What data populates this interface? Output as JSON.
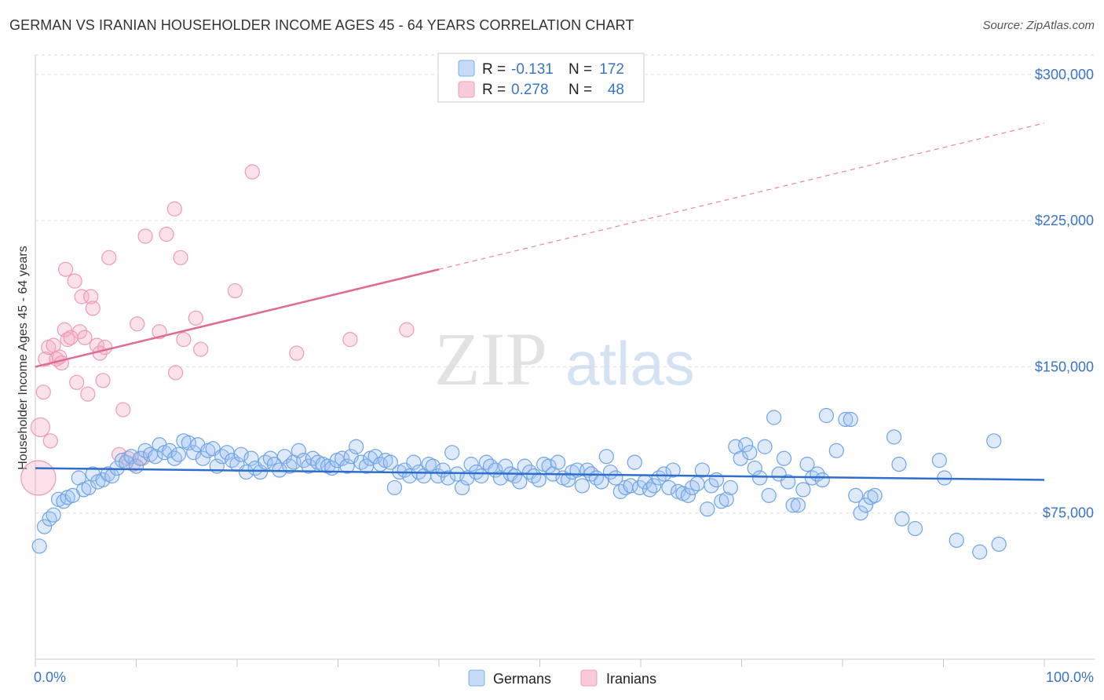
{
  "header": {
    "title": "GERMAN VS IRANIAN HOUSEHOLDER INCOME AGES 45 - 64 YEARS CORRELATION CHART",
    "source": "Source: ZipAtlas.com"
  },
  "watermark": {
    "zip": "ZIP",
    "atlas": "atlas"
  },
  "legend": {
    "r_label": "R =",
    "n_label": "N =",
    "rows": [
      {
        "r": "-0.131",
        "n": "172"
      },
      {
        "r": "0.278",
        "n": "48"
      }
    ]
  },
  "chart_data": {
    "type": "scatter",
    "title": "GERMAN VS IRANIAN HOUSEHOLDER INCOME AGES 45 - 64 YEARS CORRELATION CHART",
    "ylabel": "Householder Income Ages 45 - 64 years",
    "xlabel": "",
    "xlim": [
      0,
      100
    ],
    "ylim": [
      0,
      310000
    ],
    "x_tick_labels": [
      "0.0%",
      "100.0%"
    ],
    "y_ticks": [
      75000,
      150000,
      225000,
      300000
    ],
    "y_tick_labels": [
      "$75,000",
      "$150,000",
      "$225,000",
      "$300,000"
    ],
    "grid": "horizontal dashed",
    "legend_position": "top-center",
    "colors": {
      "germans": "#6fa4e6",
      "iranians": "#f0a0bb",
      "german_line": "#2f6fcb",
      "iranian_line": "#e06a90"
    },
    "series": [
      {
        "name": "Germans",
        "trend": {
          "x": [
            0,
            100
          ],
          "y": [
            98000,
            92000
          ]
        },
        "points": [
          [
            0.4,
            58000
          ],
          [
            0.9,
            68000
          ],
          [
            1.4,
            72000
          ],
          [
            1.8,
            74000
          ],
          [
            2.3,
            82000
          ],
          [
            2.8,
            81000
          ],
          [
            3.2,
            83000
          ],
          [
            3.7,
            84000
          ],
          [
            4.3,
            93000
          ],
          [
            4.8,
            87000
          ],
          [
            5.3,
            88000
          ],
          [
            5.7,
            95000
          ],
          [
            6.2,
            91000
          ],
          [
            6.7,
            92000
          ],
          [
            7.2,
            95000
          ],
          [
            7.6,
            94000
          ],
          [
            8.1,
            98000
          ],
          [
            8.6,
            102000
          ],
          [
            9.0,
            101000
          ],
          [
            9.5,
            104000
          ],
          [
            10.0,
            99000
          ],
          [
            10.4,
            103000
          ],
          [
            10.9,
            107000
          ],
          [
            11.4,
            105000
          ],
          [
            11.9,
            104000
          ],
          [
            12.3,
            110000
          ],
          [
            12.8,
            106000
          ],
          [
            13.3,
            107000
          ],
          [
            13.8,
            103000
          ],
          [
            14.2,
            105000
          ],
          [
            14.7,
            112000
          ],
          [
            15.2,
            111000
          ],
          [
            15.7,
            106000
          ],
          [
            16.1,
            110000
          ],
          [
            16.6,
            103000
          ],
          [
            17.1,
            107000
          ],
          [
            17.6,
            108000
          ],
          [
            18.0,
            99000
          ],
          [
            18.5,
            104000
          ],
          [
            19.0,
            106000
          ],
          [
            19.5,
            102000
          ],
          [
            20.0,
            100000
          ],
          [
            20.4,
            105000
          ],
          [
            20.9,
            96000
          ],
          [
            21.4,
            103000
          ],
          [
            21.8,
            98000
          ],
          [
            22.3,
            96000
          ],
          [
            22.8,
            101000
          ],
          [
            23.3,
            103000
          ],
          [
            23.7,
            100000
          ],
          [
            24.2,
            97000
          ],
          [
            24.7,
            104000
          ],
          [
            25.2,
            99000
          ],
          [
            25.6,
            101000
          ],
          [
            26.1,
            107000
          ],
          [
            26.6,
            102000
          ],
          [
            27.1,
            99000
          ],
          [
            27.5,
            103000
          ],
          [
            28.0,
            101000
          ],
          [
            28.5,
            100000
          ],
          [
            29.0,
            99000
          ],
          [
            29.4,
            98000
          ],
          [
            29.9,
            102000
          ],
          [
            30.4,
            103000
          ],
          [
            30.9,
            99000
          ],
          [
            31.3,
            104000
          ],
          [
            31.8,
            109000
          ],
          [
            32.3,
            101000
          ],
          [
            32.8,
            99000
          ],
          [
            33.2,
            103000
          ],
          [
            33.7,
            104000
          ],
          [
            34.2,
            100000
          ],
          [
            34.7,
            102000
          ],
          [
            35.2,
            101000
          ],
          [
            35.6,
            88000
          ],
          [
            36.1,
            96000
          ],
          [
            36.6,
            97000
          ],
          [
            37.1,
            94000
          ],
          [
            37.5,
            101000
          ],
          [
            38.0,
            96000
          ],
          [
            38.5,
            94000
          ],
          [
            39.0,
            100000
          ],
          [
            39.4,
            99000
          ],
          [
            39.9,
            94000
          ],
          [
            40.4,
            97000
          ],
          [
            40.9,
            93000
          ],
          [
            41.3,
            106000
          ],
          [
            41.8,
            95000
          ],
          [
            42.3,
            88000
          ],
          [
            42.8,
            93000
          ],
          [
            43.2,
            100000
          ],
          [
            43.7,
            96000
          ],
          [
            44.2,
            94000
          ],
          [
            44.7,
            101000
          ],
          [
            45.1,
            99000
          ],
          [
            45.6,
            97000
          ],
          [
            46.1,
            93000
          ],
          [
            46.6,
            99000
          ],
          [
            47.1,
            95000
          ],
          [
            47.5,
            94000
          ],
          [
            48.0,
            91000
          ],
          [
            48.5,
            99000
          ],
          [
            49.0,
            96000
          ],
          [
            49.4,
            94000
          ],
          [
            49.9,
            92000
          ],
          [
            50.4,
            100000
          ],
          [
            50.9,
            99000
          ],
          [
            51.3,
            95000
          ],
          [
            51.8,
            101000
          ],
          [
            52.3,
            93000
          ],
          [
            52.8,
            92000
          ],
          [
            53.2,
            96000
          ],
          [
            53.7,
            97000
          ],
          [
            54.2,
            89000
          ],
          [
            54.7,
            97000
          ],
          [
            55.1,
            95000
          ],
          [
            55.6,
            93000
          ],
          [
            56.1,
            91000
          ],
          [
            56.6,
            104000
          ],
          [
            57.0,
            96000
          ],
          [
            57.5,
            93000
          ],
          [
            58.0,
            86000
          ],
          [
            58.5,
            88000
          ],
          [
            59.0,
            89000
          ],
          [
            59.4,
            101000
          ],
          [
            59.9,
            88000
          ],
          [
            60.4,
            91000
          ],
          [
            60.9,
            87000
          ],
          [
            61.3,
            89000
          ],
          [
            61.8,
            93000
          ],
          [
            62.3,
            95000
          ],
          [
            62.8,
            88000
          ],
          [
            63.2,
            97000
          ],
          [
            63.7,
            86000
          ],
          [
            64.2,
            85000
          ],
          [
            64.7,
            84000
          ],
          [
            65.1,
            88000
          ],
          [
            65.6,
            90000
          ],
          [
            66.1,
            97000
          ],
          [
            66.6,
            77000
          ],
          [
            67.0,
            89000
          ],
          [
            67.5,
            92000
          ],
          [
            68.0,
            81000
          ],
          [
            68.5,
            82000
          ],
          [
            68.9,
            88000
          ],
          [
            69.4,
            109000
          ],
          [
            69.9,
            103000
          ],
          [
            70.4,
            110000
          ],
          [
            70.8,
            106000
          ],
          [
            71.3,
            98000
          ],
          [
            71.8,
            93000
          ],
          [
            72.3,
            109000
          ],
          [
            72.7,
            84000
          ],
          [
            73.2,
            124000
          ],
          [
            73.7,
            95000
          ],
          [
            74.2,
            103000
          ],
          [
            74.6,
            91000
          ],
          [
            75.1,
            79000
          ],
          [
            75.6,
            79000
          ],
          [
            76.1,
            87000
          ],
          [
            76.5,
            100000
          ],
          [
            77.0,
            93000
          ],
          [
            77.5,
            95000
          ],
          [
            78.0,
            92000
          ],
          [
            78.4,
            125000
          ],
          [
            79.4,
            107000
          ],
          [
            80.3,
            123000
          ],
          [
            80.8,
            123000
          ],
          [
            81.3,
            84000
          ],
          [
            81.8,
            75000
          ],
          [
            82.3,
            79000
          ],
          [
            82.8,
            83000
          ],
          [
            83.2,
            84000
          ],
          [
            85.1,
            114000
          ],
          [
            85.6,
            100000
          ],
          [
            85.9,
            72000
          ],
          [
            87.2,
            67000
          ],
          [
            89.6,
            102000
          ],
          [
            90.1,
            93000
          ],
          [
            91.3,
            61000
          ],
          [
            93.6,
            55000
          ],
          [
            95.0,
            112000
          ],
          [
            95.5,
            59000
          ]
        ]
      },
      {
        "name": "Iranians",
        "trend": {
          "x": [
            0,
            100
          ],
          "y": [
            150000,
            275000
          ]
        },
        "points": [
          [
            0.3,
            93000
          ],
          [
            0.5,
            119000
          ],
          [
            0.8,
            137000
          ],
          [
            1.0,
            154000
          ],
          [
            1.3,
            160000
          ],
          [
            1.5,
            112000
          ],
          [
            1.8,
            161000
          ],
          [
            2.1,
            154000
          ],
          [
            2.4,
            155000
          ],
          [
            2.6,
            152000
          ],
          [
            2.9,
            169000
          ],
          [
            3.0,
            200000
          ],
          [
            3.2,
            164000
          ],
          [
            3.5,
            165000
          ],
          [
            3.9,
            194000
          ],
          [
            4.1,
            142000
          ],
          [
            4.4,
            168000
          ],
          [
            4.6,
            186000
          ],
          [
            4.9,
            165000
          ],
          [
            5.2,
            136000
          ],
          [
            5.5,
            186000
          ],
          [
            5.7,
            180000
          ],
          [
            6.1,
            161000
          ],
          [
            6.4,
            157000
          ],
          [
            6.7,
            143000
          ],
          [
            6.9,
            160000
          ],
          [
            7.3,
            206000
          ],
          [
            8.3,
            105000
          ],
          [
            8.7,
            128000
          ],
          [
            9.2,
            103000
          ],
          [
            9.7,
            100000
          ],
          [
            10.1,
            172000
          ],
          [
            10.6,
            103000
          ],
          [
            10.9,
            217000
          ],
          [
            12.3,
            168000
          ],
          [
            13.0,
            218000
          ],
          [
            13.8,
            231000
          ],
          [
            13.9,
            147000
          ],
          [
            14.4,
            206000
          ],
          [
            14.7,
            164000
          ],
          [
            15.9,
            175000
          ],
          [
            16.4,
            159000
          ],
          [
            19.8,
            189000
          ],
          [
            21.5,
            250000
          ],
          [
            25.9,
            157000
          ],
          [
            31.2,
            164000
          ],
          [
            36.8,
            169000
          ]
        ]
      }
    ]
  }
}
